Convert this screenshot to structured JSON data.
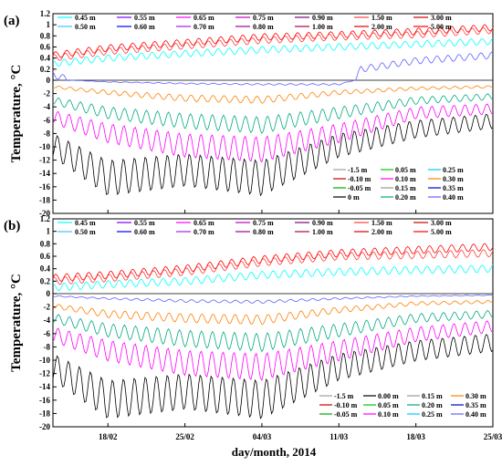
{
  "xlabel": "day/month, 2014",
  "chart_data": [
    {
      "type": "line",
      "panel_label": "(a)",
      "ylabel": "Temperature, °C",
      "ylim": [
        -20,
        1.2
      ],
      "y_ticks": [
        -20,
        -18,
        -16,
        -14,
        -12,
        -10,
        -8,
        -6,
        -4,
        -2,
        0,
        0.2,
        0.4,
        0.6,
        0.8,
        1,
        1.2
      ],
      "xlim": [
        "2014-02-13",
        "2014-03-25"
      ],
      "x_ticks": [
        "18/02",
        "25/02",
        "04/03",
        "11/03",
        "18/03",
        "25/03"
      ],
      "positive_legend": {
        "items": [
          {
            "name": "0.45 m",
            "color": "#00ffff"
          },
          {
            "name": "0.55 m",
            "color": "#8000ff"
          },
          {
            "name": "0.65 m",
            "color": "#ff00ff"
          },
          {
            "name": "0.75 m",
            "color": "#c000c0"
          },
          {
            "name": "0.90 m",
            "color": "#800080"
          },
          {
            "name": "1.50 m",
            "color": "#ff4040"
          },
          {
            "name": "3.00 m",
            "color": "#cc0000"
          },
          {
            "name": "0.50 m",
            "color": "#40c0ff"
          },
          {
            "name": "0.60 m",
            "color": "#0000ff"
          },
          {
            "name": "0.70 m",
            "color": "#a020f0"
          },
          {
            "name": "0.80 m",
            "color": "#a000a0"
          },
          {
            "name": "1.00 m",
            "color": "#b00050"
          },
          {
            "name": "2.00 m",
            "color": "#e00000"
          },
          {
            "name": "5.00 m",
            "color": "#ff0000"
          }
        ]
      },
      "negative_legend": {
        "items": [
          {
            "name": "-1.5 m",
            "color": "#a0a0a0"
          },
          {
            "name": "0.05 m",
            "color": "#00cc00"
          },
          {
            "name": "0.25 m",
            "color": "#00ccff"
          },
          {
            "name": "-0.10 m",
            "color": "#cc0000"
          },
          {
            "name": "0.10 m",
            "color": "#ff00ff"
          },
          {
            "name": "0.30 m",
            "color": "#ff8000"
          },
          {
            "name": "-0.05 m",
            "color": "#00aa00"
          },
          {
            "name": "0.15 m",
            "color": "#999999"
          },
          {
            "name": "0.35 m",
            "color": "#0000cc"
          },
          {
            "name": "0 m",
            "color": "#000000"
          },
          {
            "name": "0.20 m",
            "color": "#00aa80"
          },
          {
            "name": "0.40 m",
            "color": "#6060ff"
          }
        ]
      },
      "series": [
        {
          "name": "5.00 m",
          "color": "#ff0000",
          "x": [
            "2014-02-13",
            "2014-02-18",
            "2014-02-25",
            "2014-03-04",
            "2014-03-11",
            "2014-03-18",
            "2014-03-25"
          ],
          "y": [
            0.45,
            0.58,
            0.68,
            0.78,
            0.82,
            0.88,
            0.95
          ]
        },
        {
          "name": "1.50 m",
          "color": "#ff4040",
          "x": [
            "2014-02-13",
            "2014-02-18",
            "2014-02-25",
            "2014-03-04",
            "2014-03-11",
            "2014-03-18",
            "2014-03-25"
          ],
          "y": [
            0.4,
            0.52,
            0.62,
            0.72,
            0.78,
            0.82,
            0.9
          ]
        },
        {
          "name": "0.45 m",
          "color": "#00ffff",
          "x": [
            "2014-02-13",
            "2014-02-18",
            "2014-02-25",
            "2014-03-04",
            "2014-03-11",
            "2014-03-18",
            "2014-03-25"
          ],
          "y": [
            0.3,
            0.4,
            0.48,
            0.55,
            0.6,
            0.65,
            0.7
          ]
        },
        {
          "name": "0.40 m",
          "color": "#6060ff",
          "x": [
            "2014-02-13",
            "2014-02-18",
            "2014-02-25",
            "2014-03-04",
            "2014-03-11",
            "2014-03-13",
            "2014-03-18",
            "2014-03-25"
          ],
          "y": [
            0.1,
            -0.2,
            -0.4,
            -0.5,
            -0.5,
            0.2,
            0.35,
            0.45
          ]
        },
        {
          "name": "0.30 m",
          "color": "#ff8000",
          "x": [
            "2014-02-13",
            "2014-02-18",
            "2014-02-25",
            "2014-03-04",
            "2014-03-11",
            "2014-03-18",
            "2014-03-25"
          ],
          "y": [
            -0.8,
            -1.5,
            -2.2,
            -2.4,
            -1.5,
            -1.0,
            -0.8
          ]
        },
        {
          "name": "0.20 m",
          "color": "#00aa80",
          "x": [
            "2014-02-13",
            "2014-02-18",
            "2014-02-25",
            "2014-03-04",
            "2014-03-11",
            "2014-03-18",
            "2014-03-25"
          ],
          "y": [
            -2.5,
            -4.0,
            -5.0,
            -5.5,
            -4.0,
            -2.5,
            -2.0
          ]
        },
        {
          "name": "0.10 m",
          "color": "#ff00ff",
          "x": [
            "2014-02-13",
            "2014-02-18",
            "2014-02-25",
            "2014-03-04",
            "2014-03-11",
            "2014-03-18",
            "2014-03-25"
          ],
          "y": [
            -4.5,
            -6.5,
            -8.0,
            -8.5,
            -6.5,
            -4.0,
            -3.5
          ]
        },
        {
          "name": "0 m",
          "color": "#000000",
          "x": [
            "2014-02-13",
            "2014-02-18",
            "2014-02-25",
            "2014-03-04",
            "2014-03-11",
            "2014-03-18",
            "2014-03-25"
          ],
          "y": [
            -8,
            -12,
            -11,
            -12,
            -8,
            -6,
            -5
          ]
        }
      ],
      "x_range_min_curve_days": [
        [
          0,
          -8
        ],
        [
          2,
          -16
        ],
        [
          4,
          -18
        ],
        [
          6,
          -12
        ],
        [
          10,
          -14
        ],
        [
          14,
          -12
        ],
        [
          18,
          -14
        ],
        [
          22,
          -11
        ],
        [
          28,
          -9
        ],
        [
          32,
          -12
        ],
        [
          36,
          -10
        ],
        [
          40,
          -6
        ]
      ]
    },
    {
      "type": "line",
      "panel_label": "(b)",
      "ylabel": "Temperature, °C",
      "ylim": [
        -20,
        1.2
      ],
      "y_ticks": [
        -20,
        -18,
        -16,
        -14,
        -12,
        -10,
        -8,
        -6,
        -4,
        -2,
        0,
        0.2,
        0.4,
        0.6,
        0.8,
        1,
        1.2
      ],
      "xlim": [
        "2014-02-13",
        "2014-03-25"
      ],
      "x_ticks": [
        "18/02",
        "25/02",
        "04/03",
        "11/03",
        "18/03",
        "25/03"
      ],
      "positive_legend": {
        "items": [
          {
            "name": "0.45 m",
            "color": "#00ffff"
          },
          {
            "name": "0.55 m",
            "color": "#8000ff"
          },
          {
            "name": "0.65 m",
            "color": "#ff00ff"
          },
          {
            "name": "0.75 m",
            "color": "#c000c0"
          },
          {
            "name": "0.90 m",
            "color": "#800080"
          },
          {
            "name": "1.50 m",
            "color": "#ff4040"
          },
          {
            "name": "3.00 m",
            "color": "#cc0000"
          },
          {
            "name": "0.50 m",
            "color": "#40c0ff"
          },
          {
            "name": "0.60 m",
            "color": "#0000ff"
          },
          {
            "name": "0.70 m",
            "color": "#a020f0"
          },
          {
            "name": "0.80 m",
            "color": "#a000a0"
          },
          {
            "name": "1.00 m",
            "color": "#b00050"
          },
          {
            "name": "2.00 m",
            "color": "#e00000"
          },
          {
            "name": "5.00 m",
            "color": "#ff0000"
          }
        ]
      },
      "negative_legend": {
        "items": [
          {
            "name": "-1.5 m",
            "color": "#a0a0a0"
          },
          {
            "name": "0.00 m",
            "color": "#000000"
          },
          {
            "name": "0.15 m",
            "color": "#999999"
          },
          {
            "name": "0.30 m",
            "color": "#ff8000"
          },
          {
            "name": "-0.10 m",
            "color": "#cc0000"
          },
          {
            "name": "0.05 m",
            "color": "#00cc00"
          },
          {
            "name": "0.20 m",
            "color": "#00aa80"
          },
          {
            "name": "0.35 m",
            "color": "#0000cc"
          },
          {
            "name": "-0.05 m",
            "color": "#00aa00"
          },
          {
            "name": "0.10 m",
            "color": "#ff00ff"
          },
          {
            "name": "0.25 m",
            "color": "#00ccff"
          },
          {
            "name": "0.40 m",
            "color": "#6060ff"
          }
        ]
      },
      "series": [
        {
          "name": "5.00 m",
          "color": "#ff0000",
          "x": [
            "2014-02-13",
            "2014-02-18",
            "2014-02-25",
            "2014-03-04",
            "2014-03-11",
            "2014-03-18",
            "2014-03-25"
          ],
          "y": [
            0.25,
            0.3,
            0.4,
            0.55,
            0.65,
            0.7,
            0.75
          ]
        },
        {
          "name": "1.50 m",
          "color": "#ff4040",
          "x": [
            "2014-02-13",
            "2014-02-18",
            "2014-02-25",
            "2014-03-04",
            "2014-03-11",
            "2014-03-18",
            "2014-03-25"
          ],
          "y": [
            0.2,
            0.25,
            0.35,
            0.5,
            0.6,
            0.62,
            0.65
          ]
        },
        {
          "name": "0.45 m",
          "color": "#00ffff",
          "x": [
            "2014-02-13",
            "2014-02-18",
            "2014-02-25",
            "2014-03-04",
            "2014-03-11",
            "2014-03-18",
            "2014-03-25"
          ],
          "y": [
            0.1,
            0.15,
            0.2,
            0.3,
            0.35,
            0.38,
            0.4
          ]
        },
        {
          "name": "0.40 m",
          "color": "#6060ff",
          "x": [
            "2014-02-13",
            "2014-02-18",
            "2014-02-25",
            "2014-03-04",
            "2014-03-11",
            "2014-03-18",
            "2014-03-25"
          ],
          "y": [
            -0.3,
            -0.6,
            -0.9,
            -1.0,
            -0.6,
            -0.3,
            -0.2
          ]
        },
        {
          "name": "0.30 m",
          "color": "#ff8000",
          "x": [
            "2014-02-13",
            "2014-02-18",
            "2014-02-25",
            "2014-03-04",
            "2014-03-11",
            "2014-03-18",
            "2014-03-25"
          ],
          "y": [
            -1.5,
            -2.5,
            -3.0,
            -3.2,
            -2.0,
            -1.2,
            -1.0
          ]
        },
        {
          "name": "0.20 m",
          "color": "#00aa80",
          "x": [
            "2014-02-13",
            "2014-02-18",
            "2014-02-25",
            "2014-03-04",
            "2014-03-11",
            "2014-03-18",
            "2014-03-25"
          ],
          "y": [
            -3.0,
            -4.5,
            -5.5,
            -6.0,
            -4.5,
            -3.0,
            -2.5
          ]
        },
        {
          "name": "0.10 m",
          "color": "#ff00ff",
          "x": [
            "2014-02-13",
            "2014-02-18",
            "2014-02-25",
            "2014-03-04",
            "2014-03-11",
            "2014-03-18",
            "2014-03-25"
          ],
          "y": [
            -5.0,
            -7.0,
            -8.5,
            -9.0,
            -7.0,
            -5.0,
            -4.0
          ]
        },
        {
          "name": "0.00 m",
          "color": "#000000",
          "x": [
            "2014-02-13",
            "2014-02-18",
            "2014-02-25",
            "2014-03-04",
            "2014-03-11",
            "2014-03-18",
            "2014-03-25"
          ],
          "y": [
            -9,
            -13,
            -12,
            -13,
            -9,
            -7,
            -6
          ]
        }
      ],
      "x_range_min_curve_days": [
        [
          0,
          -9
        ],
        [
          2,
          -17
        ],
        [
          4,
          -19
        ],
        [
          6,
          -14
        ],
        [
          10,
          -15
        ],
        [
          14,
          -13
        ],
        [
          18,
          -15
        ],
        [
          22,
          -12
        ],
        [
          28,
          -10
        ],
        [
          32,
          -14
        ],
        [
          36,
          -12
        ],
        [
          40,
          -7
        ]
      ]
    }
  ]
}
